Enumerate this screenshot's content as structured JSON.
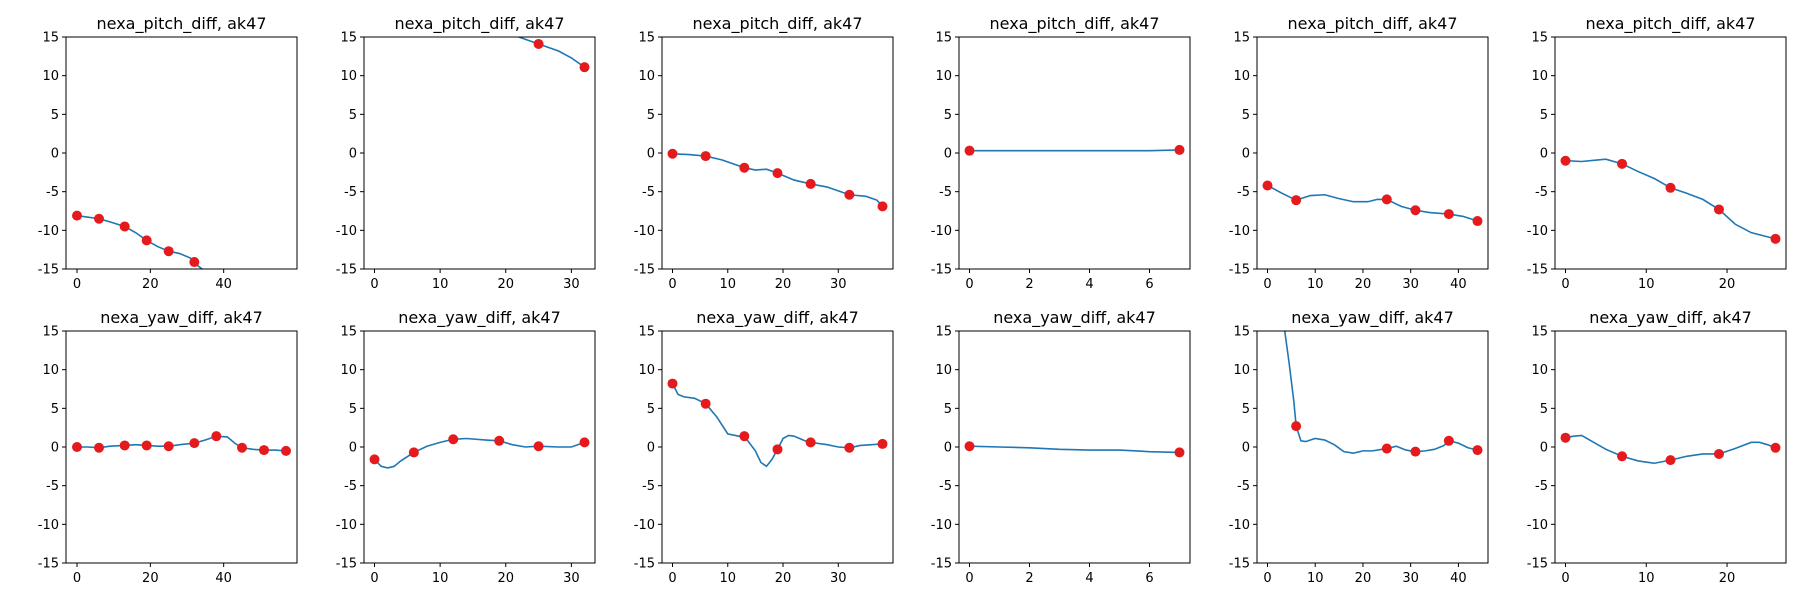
{
  "colors": {
    "line": "#1f77b4",
    "marker": "#e41a1c",
    "axes": "#000000"
  },
  "chart_data": [
    {
      "type": "scatter",
      "title": "nexa_pitch_diff, ak47",
      "xlim": [
        -3,
        60
      ],
      "ylim": [
        -15,
        15
      ],
      "xticks": [
        0,
        20,
        40
      ],
      "yticks": [
        -15,
        -10,
        -5,
        0,
        5,
        10,
        15
      ],
      "points": {
        "x": [
          0,
          6,
          13,
          19,
          25,
          32
        ],
        "y": [
          -8.1,
          -8.5,
          -9.5,
          -11.3,
          -12.7,
          -14.1
        ]
      },
      "line": {
        "x": [
          0,
          3,
          6,
          9,
          13,
          16,
          19,
          22,
          25,
          28,
          31,
          32,
          33,
          35
        ],
        "y": [
          -8.1,
          -8.3,
          -8.5,
          -8.9,
          -9.5,
          -10.3,
          -11.3,
          -12.1,
          -12.7,
          -13.0,
          -13.6,
          -14.1,
          -14.6,
          -15.3
        ]
      }
    },
    {
      "type": "scatter",
      "title": "nexa_pitch_diff, ak47",
      "xlim": [
        -1.6,
        33.6
      ],
      "ylim": [
        -15,
        15
      ],
      "xticks": [
        0,
        10,
        20,
        30
      ],
      "yticks": [
        -15,
        -10,
        -5,
        0,
        5,
        10,
        15
      ],
      "points": {
        "x": [
          25,
          32
        ],
        "y": [
          14.1,
          11.1
        ]
      },
      "line": {
        "x": [
          20,
          22,
          25,
          28,
          30,
          32
        ],
        "y": [
          15.6,
          15.0,
          14.1,
          13.2,
          12.3,
          11.1
        ]
      }
    },
    {
      "type": "scatter",
      "title": "nexa_pitch_diff, ak47",
      "xlim": [
        -1.9,
        39.9
      ],
      "ylim": [
        -15,
        15
      ],
      "xticks": [
        0,
        10,
        20,
        30
      ],
      "yticks": [
        -15,
        -10,
        -5,
        0,
        5,
        10,
        15
      ],
      "points": {
        "x": [
          0,
          6,
          13,
          19,
          25,
          32,
          38
        ],
        "y": [
          -0.1,
          -0.4,
          -1.9,
          -2.6,
          -4.0,
          -5.4,
          -6.9
        ]
      },
      "line": {
        "x": [
          0,
          3,
          6,
          9,
          11,
          13,
          15,
          17,
          19,
          22,
          25,
          28,
          30,
          32,
          35,
          37,
          38
        ],
        "y": [
          -0.1,
          -0.2,
          -0.4,
          -0.9,
          -1.4,
          -1.9,
          -2.2,
          -2.1,
          -2.6,
          -3.5,
          -4.0,
          -4.4,
          -4.9,
          -5.4,
          -5.6,
          -6.1,
          -6.9
        ]
      }
    },
    {
      "type": "scatter",
      "title": "nexa_pitch_diff, ak47",
      "xlim": [
        -0.35,
        7.35
      ],
      "ylim": [
        -15,
        15
      ],
      "xticks": [
        0,
        2,
        4,
        6
      ],
      "yticks": [
        -15,
        -10,
        -5,
        0,
        5,
        10,
        15
      ],
      "points": {
        "x": [
          0,
          7
        ],
        "y": [
          0.3,
          0.4
        ]
      },
      "line": {
        "x": [
          0,
          2,
          4,
          6,
          7
        ],
        "y": [
          0.3,
          0.3,
          0.3,
          0.3,
          0.4
        ]
      }
    },
    {
      "type": "scatter",
      "title": "nexa_pitch_diff, ak47",
      "xlim": [
        -2.2,
        46.2
      ],
      "ylim": [
        -15,
        15
      ],
      "xticks": [
        0,
        10,
        20,
        30,
        40
      ],
      "yticks": [
        -15,
        -10,
        -5,
        0,
        5,
        10,
        15
      ],
      "points": {
        "x": [
          0,
          6,
          25,
          31,
          38,
          44
        ],
        "y": [
          -4.2,
          -6.1,
          -6.0,
          -7.4,
          -7.9,
          -8.8
        ]
      },
      "line": {
        "x": [
          0,
          3,
          6,
          9,
          12,
          15,
          18,
          21,
          23,
          25,
          28,
          31,
          34,
          38,
          41,
          44
        ],
        "y": [
          -4.2,
          -5.2,
          -6.1,
          -5.5,
          -5.4,
          -5.9,
          -6.3,
          -6.3,
          -6.0,
          -6.0,
          -6.9,
          -7.4,
          -7.7,
          -7.9,
          -8.2,
          -8.8
        ]
      }
    },
    {
      "type": "scatter",
      "title": "nexa_pitch_diff, ak47",
      "xlim": [
        -1.3,
        27.3
      ],
      "ylim": [
        -15,
        15
      ],
      "xticks": [
        0,
        10,
        20
      ],
      "yticks": [
        -15,
        -10,
        -5,
        0,
        5,
        10,
        15
      ],
      "points": {
        "x": [
          0,
          7,
          13,
          19,
          26
        ],
        "y": [
          -1.0,
          -1.4,
          -4.5,
          -7.3,
          -11.1
        ]
      },
      "line": {
        "x": [
          0,
          2,
          4,
          5,
          7,
          9,
          11,
          13,
          15,
          17,
          19,
          21,
          23,
          26
        ],
        "y": [
          -1.0,
          -1.1,
          -0.9,
          -0.8,
          -1.4,
          -2.4,
          -3.3,
          -4.5,
          -5.2,
          -6.0,
          -7.3,
          -9.2,
          -10.3,
          -11.1
        ]
      }
    },
    {
      "type": "scatter",
      "title": "nexa_yaw_diff, ak47",
      "xlim": [
        -3,
        60
      ],
      "ylim": [
        -15,
        15
      ],
      "xticks": [
        0,
        20,
        40
      ],
      "yticks": [
        -15,
        -10,
        -5,
        0,
        5,
        10,
        15
      ],
      "points": {
        "x": [
          0,
          6,
          13,
          19,
          25,
          32,
          38,
          45,
          51,
          57
        ],
        "y": [
          0.0,
          -0.1,
          0.2,
          0.2,
          0.1,
          0.5,
          1.4,
          -0.1,
          -0.4,
          -0.5
        ]
      },
      "line": {
        "x": [
          0,
          3,
          6,
          9,
          13,
          16,
          19,
          22,
          25,
          28,
          32,
          35,
          38,
          41,
          43,
          45,
          48,
          51,
          54,
          57
        ],
        "y": [
          0.0,
          0.0,
          -0.1,
          0.1,
          0.2,
          0.3,
          0.2,
          0.1,
          0.1,
          0.3,
          0.5,
          0.9,
          1.4,
          1.3,
          0.5,
          -0.1,
          -0.3,
          -0.4,
          -0.4,
          -0.5
        ]
      }
    },
    {
      "type": "scatter",
      "title": "nexa_yaw_diff, ak47",
      "xlim": [
        -1.6,
        33.6
      ],
      "ylim": [
        -15,
        15
      ],
      "xticks": [
        0,
        10,
        20,
        30
      ],
      "yticks": [
        -15,
        -10,
        -5,
        0,
        5,
        10,
        15
      ],
      "points": {
        "x": [
          0,
          6,
          12,
          19,
          25,
          32
        ],
        "y": [
          -1.6,
          -0.7,
          1.0,
          0.8,
          0.1,
          0.6
        ]
      },
      "line": {
        "x": [
          0,
          1,
          2,
          3,
          4,
          6,
          8,
          10,
          12,
          14,
          17,
          19,
          21,
          23,
          25,
          28,
          30,
          32
        ],
        "y": [
          -1.6,
          -2.5,
          -2.7,
          -2.5,
          -1.8,
          -0.7,
          0.1,
          0.6,
          1.0,
          1.1,
          0.9,
          0.8,
          0.3,
          0.0,
          0.1,
          0.0,
          0.0,
          0.6
        ]
      }
    },
    {
      "type": "scatter",
      "title": "nexa_yaw_diff, ak47",
      "xlim": [
        -1.9,
        39.9
      ],
      "ylim": [
        -15,
        15
      ],
      "xticks": [
        0,
        10,
        20,
        30
      ],
      "yticks": [
        -15,
        -10,
        -5,
        0,
        5,
        10,
        15
      ],
      "points": {
        "x": [
          0,
          6,
          13,
          19,
          25,
          32,
          38
        ],
        "y": [
          8.2,
          5.6,
          1.4,
          -0.3,
          0.6,
          -0.1,
          0.4
        ]
      },
      "line": {
        "x": [
          0,
          1,
          2,
          4,
          6,
          8,
          10,
          12,
          13,
          15,
          16,
          17,
          18,
          19,
          20,
          21,
          22,
          24,
          25,
          28,
          30,
          32,
          34,
          36,
          38
        ],
        "y": [
          8.2,
          6.8,
          6.5,
          6.3,
          5.6,
          3.9,
          1.7,
          1.4,
          1.4,
          -0.5,
          -2.0,
          -2.5,
          -1.6,
          -0.3,
          1.1,
          1.5,
          1.4,
          0.8,
          0.6,
          0.3,
          0.0,
          -0.1,
          0.2,
          0.3,
          0.4
        ]
      }
    },
    {
      "type": "scatter",
      "title": "nexa_yaw_diff, ak47",
      "xlim": [
        -0.35,
        7.35
      ],
      "ylim": [
        -15,
        15
      ],
      "xticks": [
        0,
        2,
        4,
        6
      ],
      "yticks": [
        -15,
        -10,
        -5,
        0,
        5,
        10,
        15
      ],
      "points": {
        "x": [
          0,
          7
        ],
        "y": [
          0.1,
          -0.7
        ]
      },
      "line": {
        "x": [
          0,
          1,
          2,
          3,
          4,
          5,
          6,
          7
        ],
        "y": [
          0.1,
          0.0,
          -0.1,
          -0.3,
          -0.4,
          -0.4,
          -0.6,
          -0.7
        ]
      }
    },
    {
      "type": "scatter",
      "title": "nexa_yaw_diff, ak47",
      "xlim": [
        -2.2,
        46.2
      ],
      "ylim": [
        -15,
        15
      ],
      "xticks": [
        0,
        10,
        20,
        30,
        40
      ],
      "yticks": [
        -15,
        -10,
        -5,
        0,
        5,
        10,
        15
      ],
      "points": {
        "x": [
          6,
          25,
          31,
          38,
          44
        ],
        "y": [
          2.7,
          -0.2,
          -0.6,
          0.8,
          -0.4
        ]
      },
      "line": {
        "x": [
          3.5,
          4.5,
          5.5,
          6,
          7,
          8,
          9,
          10,
          12,
          14,
          16,
          18,
          20,
          22,
          24,
          25,
          27,
          29,
          31,
          33,
          35,
          37,
          38,
          40,
          42,
          44
        ],
        "y": [
          15.5,
          11.0,
          6.0,
          2.7,
          0.8,
          0.7,
          0.9,
          1.1,
          0.9,
          0.3,
          -0.6,
          -0.8,
          -0.5,
          -0.5,
          -0.3,
          -0.2,
          0.1,
          -0.4,
          -0.6,
          -0.5,
          -0.3,
          0.2,
          0.8,
          0.5,
          -0.1,
          -0.4
        ]
      }
    },
    {
      "type": "scatter",
      "title": "nexa_yaw_diff, ak47",
      "xlim": [
        -1.3,
        27.3
      ],
      "ylim": [
        -15,
        15
      ],
      "xticks": [
        0,
        10,
        20
      ],
      "yticks": [
        -15,
        -10,
        -5,
        0,
        5,
        10,
        15
      ],
      "points": {
        "x": [
          0,
          7,
          13,
          19,
          26
        ],
        "y": [
          1.2,
          -1.2,
          -1.7,
          -0.9,
          -0.1
        ]
      },
      "line": {
        "x": [
          0,
          1,
          2,
          3,
          5,
          7,
          9,
          11,
          13,
          15,
          17,
          19,
          21,
          23,
          24,
          25,
          26
        ],
        "y": [
          1.2,
          1.4,
          1.5,
          0.9,
          -0.3,
          -1.2,
          -1.8,
          -2.1,
          -1.7,
          -1.2,
          -0.9,
          -0.9,
          -0.2,
          0.6,
          0.6,
          0.3,
          -0.1
        ]
      }
    }
  ]
}
